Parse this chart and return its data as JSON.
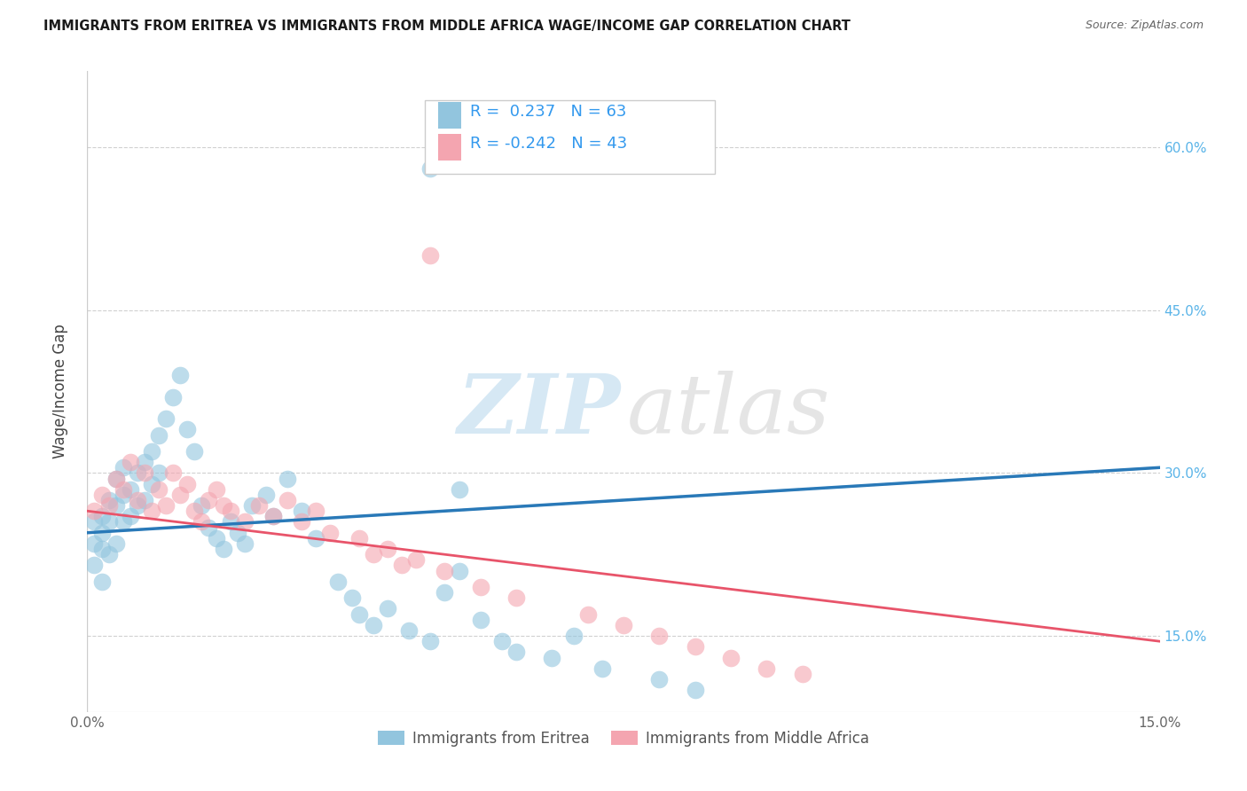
{
  "title": "IMMIGRANTS FROM ERITREA VS IMMIGRANTS FROM MIDDLE AFRICA WAGE/INCOME GAP CORRELATION CHART",
  "source": "Source: ZipAtlas.com",
  "ylabel": "Wage/Income Gap",
  "right_yticklabels": [
    "15.0%",
    "30.0%",
    "45.0%",
    "60.0%"
  ],
  "right_yticks_vals": [
    0.15,
    0.3,
    0.45,
    0.6
  ],
  "xmin": 0.0,
  "xmax": 0.15,
  "ymin": 0.08,
  "ymax": 0.67,
  "legend_r1": "R =  0.237   N = 63",
  "legend_r2": "R = -0.242   N = 43",
  "legend_label1": "Immigrants from Eritrea",
  "legend_label2": "Immigrants from Middle Africa",
  "blue_color": "#92c5de",
  "pink_color": "#f4a5b0",
  "blue_line_color": "#2979b8",
  "pink_line_color": "#e8546a",
  "dashed_line_color": "#b0c4d8",
  "legend_text_color": "#3399ee",
  "right_axis_color": "#5ab4e8",
  "eritrea_x": [
    0.001,
    0.001,
    0.001,
    0.002,
    0.002,
    0.002,
    0.002,
    0.003,
    0.003,
    0.003,
    0.004,
    0.004,
    0.004,
    0.005,
    0.005,
    0.005,
    0.006,
    0.006,
    0.007,
    0.007,
    0.008,
    0.008,
    0.009,
    0.009,
    0.01,
    0.01,
    0.011,
    0.012,
    0.013,
    0.014,
    0.015,
    0.016,
    0.017,
    0.018,
    0.019,
    0.02,
    0.021,
    0.022,
    0.023,
    0.025,
    0.026,
    0.028,
    0.03,
    0.032,
    0.035,
    0.037,
    0.038,
    0.04,
    0.042,
    0.045,
    0.048,
    0.05,
    0.052,
    0.055,
    0.058,
    0.06,
    0.065,
    0.068,
    0.072,
    0.08,
    0.085,
    0.048,
    0.052
  ],
  "eritrea_y": [
    0.255,
    0.235,
    0.215,
    0.26,
    0.245,
    0.23,
    0.2,
    0.275,
    0.255,
    0.225,
    0.295,
    0.27,
    0.235,
    0.305,
    0.28,
    0.255,
    0.285,
    0.26,
    0.3,
    0.27,
    0.31,
    0.275,
    0.32,
    0.29,
    0.335,
    0.3,
    0.35,
    0.37,
    0.39,
    0.34,
    0.32,
    0.27,
    0.25,
    0.24,
    0.23,
    0.255,
    0.245,
    0.235,
    0.27,
    0.28,
    0.26,
    0.295,
    0.265,
    0.24,
    0.2,
    0.185,
    0.17,
    0.16,
    0.175,
    0.155,
    0.145,
    0.19,
    0.21,
    0.165,
    0.145,
    0.135,
    0.13,
    0.15,
    0.12,
    0.11,
    0.1,
    0.58,
    0.285
  ],
  "middle_africa_x": [
    0.001,
    0.002,
    0.003,
    0.004,
    0.005,
    0.006,
    0.007,
    0.008,
    0.009,
    0.01,
    0.011,
    0.012,
    0.013,
    0.014,
    0.015,
    0.016,
    0.017,
    0.018,
    0.019,
    0.02,
    0.022,
    0.024,
    0.026,
    0.028,
    0.03,
    0.032,
    0.034,
    0.038,
    0.04,
    0.042,
    0.044,
    0.046,
    0.05,
    0.055,
    0.06,
    0.07,
    0.075,
    0.08,
    0.085,
    0.09,
    0.095,
    0.1,
    0.048
  ],
  "middle_africa_y": [
    0.265,
    0.28,
    0.27,
    0.295,
    0.285,
    0.31,
    0.275,
    0.3,
    0.265,
    0.285,
    0.27,
    0.3,
    0.28,
    0.29,
    0.265,
    0.255,
    0.275,
    0.285,
    0.27,
    0.265,
    0.255,
    0.27,
    0.26,
    0.275,
    0.255,
    0.265,
    0.245,
    0.24,
    0.225,
    0.23,
    0.215,
    0.22,
    0.21,
    0.195,
    0.185,
    0.17,
    0.16,
    0.15,
    0.14,
    0.13,
    0.12,
    0.115,
    0.5
  ]
}
